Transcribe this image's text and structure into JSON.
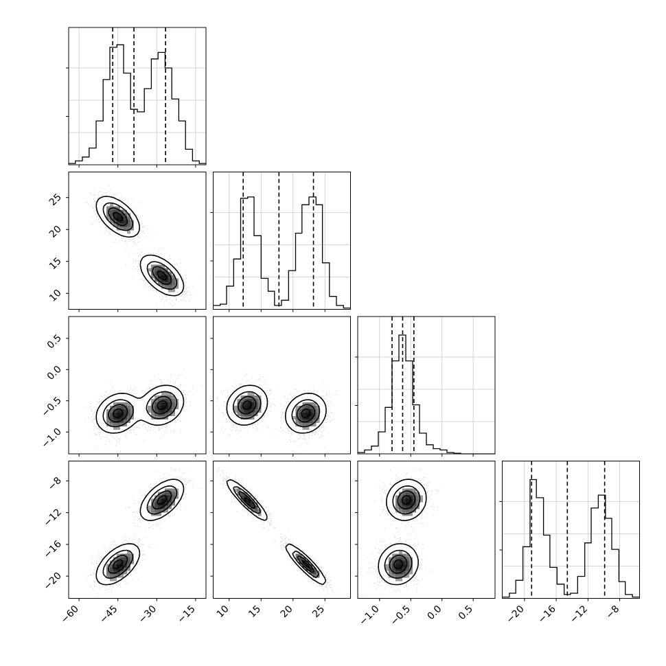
{
  "chart_data": {
    "type": "corner",
    "params": [
      {
        "name": "",
        "range": [
          -64,
          -11
        ],
        "ticks": [
          -60,
          -45,
          -30,
          -15
        ],
        "tick_labels": [
          "−60",
          "−45",
          "−30",
          "−15"
        ],
        "quantiles": [
          -47,
          -38.8,
          -26.6
        ],
        "modes": [
          {
            "mean": -44.5,
            "sd": 4.2
          },
          {
            "mean": -28.2,
            "sd": 4.2
          }
        ],
        "hist": [
          [
            -64,
            -61.4,
            0.01
          ],
          [
            -61.4,
            -58.7,
            0.03
          ],
          [
            -58.7,
            -56.1,
            0.06
          ],
          [
            -56.1,
            -53.4,
            0.13
          ],
          [
            -53.4,
            -50.7,
            0.34
          ],
          [
            -50.7,
            -48.1,
            0.66
          ],
          [
            -48.1,
            -45.4,
            0.91
          ],
          [
            -45.4,
            -42.8,
            0.93
          ],
          [
            -42.8,
            -40.1,
            0.71
          ],
          [
            -40.1,
            -37.5,
            0.43
          ],
          [
            -37.5,
            -34.8,
            0.41
          ],
          [
            -34.8,
            -32.1,
            0.59
          ],
          [
            -32.1,
            -29.5,
            0.82
          ],
          [
            -29.5,
            -26.8,
            0.87
          ],
          [
            -26.8,
            -24.2,
            0.75
          ],
          [
            -24.2,
            -21.5,
            0.51
          ],
          [
            -21.5,
            -18.9,
            0.34
          ],
          [
            -18.9,
            -16.2,
            0.12
          ],
          [
            -16.2,
            -13.6,
            0.03
          ],
          [
            -13.6,
            -11,
            0.01
          ]
        ]
      },
      {
        "name": "",
        "range": [
          7.5,
          29
        ],
        "ticks": [
          10,
          15,
          20,
          25
        ],
        "tick_labels": [
          "10",
          "15",
          "20",
          "25"
        ],
        "quantiles": [
          12.2,
          17.8,
          23.2
        ],
        "modes": [
          {
            "mean": 12.8,
            "sd": 1.6
          },
          {
            "mean": 22.6,
            "sd": 1.6
          }
        ],
        "hist": [
          [
            7.5,
            8.6,
            0.03
          ],
          [
            8.6,
            9.6,
            0.04
          ],
          [
            9.6,
            10.7,
            0.18
          ],
          [
            10.7,
            11.8,
            0.39
          ],
          [
            11.8,
            12.9,
            0.86
          ],
          [
            12.9,
            13.9,
            0.87
          ],
          [
            13.9,
            15,
            0.57
          ],
          [
            15,
            16.1,
            0.24
          ],
          [
            16.1,
            17.1,
            0.14
          ],
          [
            17.1,
            18.2,
            0.03
          ],
          [
            18.2,
            19.3,
            0.07
          ],
          [
            19.3,
            20.4,
            0.3
          ],
          [
            20.4,
            21.4,
            0.59
          ],
          [
            21.4,
            22.5,
            0.81
          ],
          [
            22.5,
            23.6,
            0.87
          ],
          [
            23.6,
            24.6,
            0.81
          ],
          [
            24.6,
            25.7,
            0.36
          ],
          [
            25.7,
            26.8,
            0.1
          ],
          [
            26.8,
            27.9,
            0.03
          ],
          [
            27.9,
            29,
            0.01
          ]
        ]
      },
      {
        "name": "",
        "range": [
          -1.35,
          0.85
        ],
        "ticks": [
          -1.0,
          -0.5,
          0.0,
          0.5
        ],
        "tick_labels": [
          "−1.0",
          "−0.5",
          "0.0",
          "0.5"
        ],
        "quantiles": [
          -0.8,
          -0.63,
          -0.45
        ],
        "modes": [
          {
            "mean": -0.66,
            "sd": 0.17
          },
          {
            "mean": -0.58,
            "sd": 0.14
          }
        ],
        "hist": [
          [
            -1.35,
            -1.24,
            0.01
          ],
          [
            -1.24,
            -1.13,
            0.03
          ],
          [
            -1.13,
            -1.02,
            0.06
          ],
          [
            -1.02,
            -0.91,
            0.17
          ],
          [
            -0.91,
            -0.8,
            0.36
          ],
          [
            -0.8,
            -0.69,
            0.72
          ],
          [
            -0.69,
            -0.58,
            0.92
          ],
          [
            -0.58,
            -0.47,
            0.72
          ],
          [
            -0.47,
            -0.36,
            0.38
          ],
          [
            -0.36,
            -0.25,
            0.16
          ],
          [
            -0.25,
            -0.14,
            0.07
          ],
          [
            -0.14,
            -0.03,
            0.04
          ],
          [
            -0.03,
            0.08,
            0.03
          ],
          [
            0.08,
            0.19,
            0.01
          ],
          [
            0.19,
            0.3,
            0.005
          ],
          [
            0.3,
            0.41,
            0
          ],
          [
            0.41,
            0.52,
            0
          ],
          [
            0.52,
            0.63,
            0
          ],
          [
            0.63,
            0.74,
            0
          ],
          [
            0.74,
            0.85,
            0
          ]
        ]
      },
      {
        "name": "",
        "range": [
          -22.8,
          -5.5
        ],
        "ticks": [
          -20,
          -16,
          -12,
          -8
        ],
        "tick_labels": [
          "−20",
          "−16",
          "−12",
          "−8"
        ],
        "quantiles": [
          -19.1,
          -14.6,
          -9.9
        ],
        "modes": [
          {
            "mean": -18.4,
            "sd": 1.3
          },
          {
            "mean": -10.5,
            "sd": 1.3
          }
        ],
        "hist": [
          [
            -22.8,
            -21.9,
            0.01
          ],
          [
            -21.9,
            -21.1,
            0.04
          ],
          [
            -21.1,
            -20.2,
            0.14
          ],
          [
            -20.2,
            -19.3,
            0.4
          ],
          [
            -19.3,
            -18.5,
            0.92
          ],
          [
            -18.5,
            -17.6,
            0.78
          ],
          [
            -17.6,
            -16.8,
            0.49
          ],
          [
            -16.8,
            -15.9,
            0.24
          ],
          [
            -15.9,
            -15,
            0.11
          ],
          [
            -15,
            -14.2,
            0.03
          ],
          [
            -14.2,
            -13.3,
            0.04
          ],
          [
            -13.3,
            -12.4,
            0.17
          ],
          [
            -12.4,
            -11.6,
            0.43
          ],
          [
            -11.6,
            -10.7,
            0.7
          ],
          [
            -10.7,
            -9.8,
            0.8
          ],
          [
            -9.8,
            -9,
            0.62
          ],
          [
            -9,
            -8.1,
            0.38
          ],
          [
            -8.1,
            -7.3,
            0.13
          ],
          [
            -7.3,
            -6.4,
            0.03
          ],
          [
            -6.4,
            -5.5,
            0.01
          ]
        ]
      }
    ],
    "correlations": [
      [
        1,
        -0.55,
        0.2,
        0.55
      ],
      [
        -0.55,
        1,
        0.15,
        -0.9
      ],
      [
        0.2,
        0.15,
        1,
        0.1
      ],
      [
        0.55,
        -0.9,
        0.1,
        1
      ]
    ],
    "joint_modes": [
      {
        "x0": -45,
        "x1": 22,
        "x2": -0.7,
        "x3": -18.5
      },
      {
        "x0": -28,
        "x1": 12.8,
        "x2": -0.57,
        "x3": -10.4
      }
    ],
    "mode_spread": [
      4.2,
      1.6,
      0.16,
      1.3
    ],
    "grid": true,
    "quantile_line_style": "dashed"
  }
}
